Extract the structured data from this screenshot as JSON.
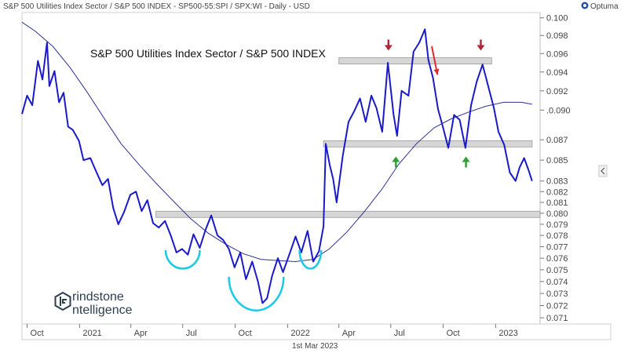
{
  "header": {
    "description": "S&P 500 Utilities Index Sector / S&P 500 INDEX - SP500-55:SPI / SPX:WI - Daily - USD",
    "brand": "Optuma"
  },
  "footer": {
    "date_label": "1st Mar 2023"
  },
  "watermark": {
    "line1": "rindstone",
    "line2": "ntelligence",
    "logo_icon": "grindstone-logo-icon"
  },
  "side_arrow_icon": "chevron-left-icon",
  "colors": {
    "price": "#1a1acb",
    "moving_average": "#2a3390",
    "band_fill": "#d6d6d6",
    "band_stroke": "#9a9a9a",
    "arc": "#19c9e6",
    "arrow_down": "#b2263a",
    "arrow_up": "#2e9e3a",
    "arrow_diag": "#e0292f"
  },
  "chart_data": {
    "type": "line",
    "title": "S&P 500 Utilities Index Sector / S&P 500 INDEX",
    "y_scale": "log",
    "ylim": [
      0.0705,
      0.1006
    ],
    "xlim": [
      "2020-09-22",
      "2023-03-20"
    ],
    "x_ticks": [
      {
        "date": "2020-10-01",
        "label": "Oct"
      },
      {
        "date": "2021-01-01",
        "label": "2021"
      },
      {
        "date": "2021-04-01",
        "label": "Apr"
      },
      {
        "date": "2021-07-01",
        "label": "Jul"
      },
      {
        "date": "2021-10-01",
        "label": "Oct"
      },
      {
        "date": "2022-01-01",
        "label": "2022"
      },
      {
        "date": "2022-04-01",
        "label": "Apr"
      },
      {
        "date": "2022-07-01",
        "label": "Jul"
      },
      {
        "date": "2022-10-01",
        "label": "Oct"
      },
      {
        "date": "2023-01-01",
        "label": "2023"
      }
    ],
    "y_ticks": [
      "0.100",
      "0.098",
      "0.096",
      "0.094",
      "0.092",
      ".0.090",
      "0.087",
      "0.085",
      "0.083",
      "0.082",
      "0.081",
      "0.080",
      "0.079",
      "0.078",
      "0.077",
      "0.076",
      "0.075",
      "0.074",
      "0.073",
      "0.072",
      "0.071"
    ],
    "series": [
      {
        "role": "price",
        "points": [
          [
            "2020-09-22",
            0.0896
          ],
          [
            "2020-10-01",
            0.0915
          ],
          [
            "2020-10-10",
            0.0905
          ],
          [
            "2020-10-20",
            0.0952
          ],
          [
            "2020-10-28",
            0.0932
          ],
          [
            "2020-11-05",
            0.0972
          ],
          [
            "2020-11-09",
            0.0925
          ],
          [
            "2020-11-18",
            0.0941
          ],
          [
            "2020-11-26",
            0.0908
          ],
          [
            "2020-12-04",
            0.0918
          ],
          [
            "2020-12-12",
            0.0883
          ],
          [
            "2020-12-20",
            0.088
          ],
          [
            "2020-12-31",
            0.0869
          ],
          [
            "2021-01-08",
            0.085
          ],
          [
            "2021-01-20",
            0.0852
          ],
          [
            "2021-01-31",
            0.0838
          ],
          [
            "2021-02-10",
            0.0826
          ],
          [
            "2021-02-20",
            0.0832
          ],
          [
            "2021-03-01",
            0.0805
          ],
          [
            "2021-03-10",
            0.079
          ],
          [
            "2021-03-20",
            0.0801
          ],
          [
            "2021-03-31",
            0.0817
          ],
          [
            "2021-04-10",
            0.082
          ],
          [
            "2021-04-20",
            0.0802
          ],
          [
            "2021-04-30",
            0.0812
          ],
          [
            "2021-05-10",
            0.0791
          ],
          [
            "2021-05-20",
            0.0787
          ],
          [
            "2021-05-31",
            0.0793
          ],
          [
            "2021-06-10",
            0.078
          ],
          [
            "2021-06-20",
            0.0765
          ],
          [
            "2021-06-30",
            0.0768
          ],
          [
            "2021-07-10",
            0.0763
          ],
          [
            "2021-07-20",
            0.0781
          ],
          [
            "2021-07-31",
            0.0769
          ],
          [
            "2021-08-10",
            0.0785
          ],
          [
            "2021-08-20",
            0.0798
          ],
          [
            "2021-08-31",
            0.078
          ],
          [
            "2021-09-10",
            0.0776
          ],
          [
            "2021-09-20",
            0.0768
          ],
          [
            "2021-09-30",
            0.0752
          ],
          [
            "2021-10-10",
            0.0765
          ],
          [
            "2021-10-20",
            0.0742
          ],
          [
            "2021-10-31",
            0.0757
          ],
          [
            "2021-11-10",
            0.074
          ],
          [
            "2021-11-18",
            0.0722
          ],
          [
            "2021-11-26",
            0.0726
          ],
          [
            "2021-12-05",
            0.0745
          ],
          [
            "2021-12-15",
            0.076
          ],
          [
            "2021-12-24",
            0.0748
          ],
          [
            "2022-01-04",
            0.0763
          ],
          [
            "2022-01-15",
            0.0779
          ],
          [
            "2022-01-25",
            0.0765
          ],
          [
            "2022-02-05",
            0.0784
          ],
          [
            "2022-02-15",
            0.0757
          ],
          [
            "2022-02-25",
            0.0766
          ],
          [
            "2022-03-05",
            0.0788
          ],
          [
            "2022-03-09",
            0.0866
          ],
          [
            "2022-03-16",
            0.0845
          ],
          [
            "2022-03-22",
            0.0832
          ],
          [
            "2022-03-28",
            0.081
          ],
          [
            "2022-04-08",
            0.0855
          ],
          [
            "2022-04-18",
            0.0888
          ],
          [
            "2022-04-28",
            0.0899
          ],
          [
            "2022-05-08",
            0.0912
          ],
          [
            "2022-05-18",
            0.0888
          ],
          [
            "2022-05-28",
            0.0915
          ],
          [
            "2022-06-06",
            0.0902
          ],
          [
            "2022-06-16",
            0.0878
          ],
          [
            "2022-06-26",
            0.095
          ],
          [
            "2022-07-06",
            0.0895
          ],
          [
            "2022-07-12",
            0.0874
          ],
          [
            "2022-07-20",
            0.092
          ],
          [
            "2022-08-01",
            0.0915
          ],
          [
            "2022-08-10",
            0.0962
          ],
          [
            "2022-08-20",
            0.0972
          ],
          [
            "2022-08-30",
            0.0987
          ],
          [
            "2022-09-05",
            0.0953
          ],
          [
            "2022-09-13",
            0.0934
          ],
          [
            "2022-09-22",
            0.0901
          ],
          [
            "2022-09-30",
            0.0884
          ],
          [
            "2022-10-10",
            0.0862
          ],
          [
            "2022-10-20",
            0.0895
          ],
          [
            "2022-10-30",
            0.089
          ],
          [
            "2022-11-09",
            0.0862
          ],
          [
            "2022-11-19",
            0.0905
          ],
          [
            "2022-11-29",
            0.093
          ],
          [
            "2022-12-09",
            0.0948
          ],
          [
            "2022-12-19",
            0.0925
          ],
          [
            "2022-12-29",
            0.0902
          ],
          [
            "2023-01-06",
            0.0878
          ],
          [
            "2023-01-16",
            0.0865
          ],
          [
            "2023-01-26",
            0.0838
          ],
          [
            "2023-02-05",
            0.083
          ],
          [
            "2023-02-12",
            0.0843
          ],
          [
            "2023-02-20",
            0.0852
          ],
          [
            "2023-02-28",
            0.084
          ],
          [
            "2023-03-06",
            0.083
          ]
        ]
      },
      {
        "role": "moving_average",
        "points": [
          [
            "2020-09-22",
            0.0995
          ],
          [
            "2020-10-15",
            0.0985
          ],
          [
            "2020-11-15",
            0.0968
          ],
          [
            "2020-12-15",
            0.0945
          ],
          [
            "2021-01-15",
            0.0918
          ],
          [
            "2021-02-15",
            0.089
          ],
          [
            "2021-03-15",
            0.0866
          ],
          [
            "2021-04-15",
            0.0846
          ],
          [
            "2021-05-15",
            0.0828
          ],
          [
            "2021-06-15",
            0.0811
          ],
          [
            "2021-07-15",
            0.0795
          ],
          [
            "2021-08-15",
            0.0782
          ],
          [
            "2021-09-15",
            0.0772
          ],
          [
            "2021-10-15",
            0.0764
          ],
          [
            "2021-11-15",
            0.0759
          ],
          [
            "2021-12-15",
            0.0758
          ],
          [
            "2022-01-15",
            0.0757
          ],
          [
            "2022-02-15",
            0.0759
          ],
          [
            "2022-03-15",
            0.0768
          ],
          [
            "2022-04-15",
            0.0783
          ],
          [
            "2022-05-15",
            0.0801
          ],
          [
            "2022-06-15",
            0.0822
          ],
          [
            "2022-07-15",
            0.0846
          ],
          [
            "2022-08-15",
            0.0866
          ],
          [
            "2022-09-15",
            0.0882
          ],
          [
            "2022-10-15",
            0.0891
          ],
          [
            "2022-11-15",
            0.0898
          ],
          [
            "2022-12-15",
            0.0904
          ],
          [
            "2023-01-15",
            0.0908
          ],
          [
            "2023-02-15",
            0.0908
          ],
          [
            "2023-03-06",
            0.0906
          ]
        ]
      }
    ],
    "horizontal_bands": [
      {
        "y": 0.0952,
        "x_start": "2022-04-01",
        "x_end": "2022-12-25"
      },
      {
        "y": 0.0866,
        "x_start": "2022-03-05",
        "x_end": "2023-03-06"
      },
      {
        "y": 0.0799,
        "x_start": "2021-05-15",
        "x_end": "2023-03-20"
      }
    ],
    "annotations": {
      "arrows_down": [
        {
          "x": "2022-06-27",
          "y": 0.0965
        },
        {
          "x": "2022-12-06",
          "y": 0.0965
        }
      ],
      "arrows_up": [
        {
          "x": "2022-07-10",
          "y": 0.0852
        },
        {
          "x": "2022-11-10",
          "y": 0.0852
        }
      ],
      "diagonal_arrows": [
        {
          "x1": "2022-09-11",
          "y1": 0.0968,
          "x2": "2022-09-21",
          "y2": 0.0937
        }
      ],
      "arcs": [
        {
          "x_start": "2021-06-01",
          "x_end": "2021-07-31",
          "y_top": 0.0767,
          "y_bottom": 0.0751
        },
        {
          "x_start": "2021-09-20",
          "x_end": "2021-12-25",
          "y_top": 0.0744,
          "y_bottom": 0.0716
        },
        {
          "x_start": "2022-01-22",
          "x_end": "2022-03-01",
          "y_top": 0.0767,
          "y_bottom": 0.0751
        }
      ]
    }
  }
}
